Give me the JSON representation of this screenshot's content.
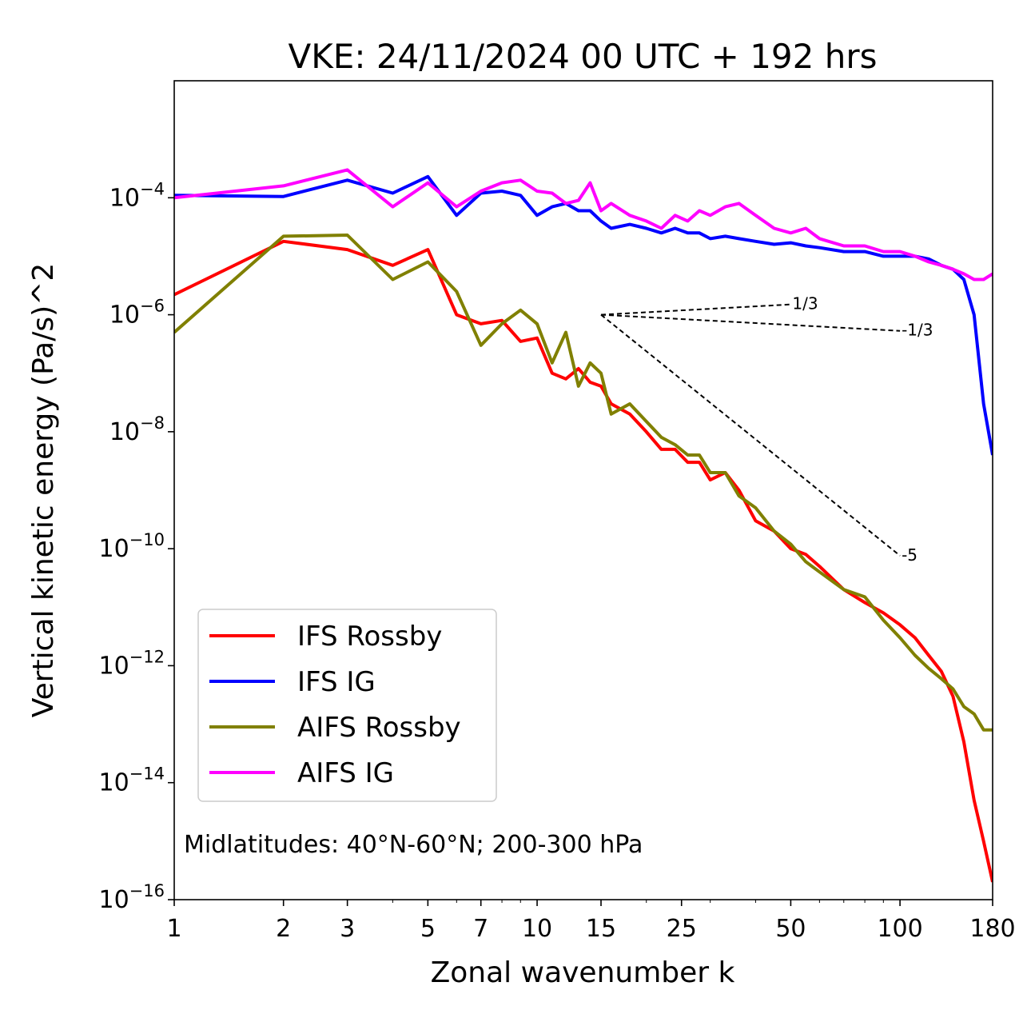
{
  "chart_data": {
    "type": "line",
    "title": "VKE: 24/11/2024 00 UTC + 192 hrs",
    "xlabel": "Zonal wavenumber k",
    "ylabel": "Vertical kinetic energy (Pa/s)^2",
    "x_scale": "log",
    "y_scale": "log",
    "xlim": [
      1,
      180
    ],
    "ylim": [
      1e-16,
      0.01
    ],
    "x_ticks": [
      1,
      2,
      3,
      5,
      7,
      10,
      15,
      25,
      50,
      100,
      180
    ],
    "y_ticks": [
      {
        "value": 0.0001,
        "base": "10",
        "exp": "−4"
      },
      {
        "value": 1e-06,
        "base": "10",
        "exp": "−6"
      },
      {
        "value": 1e-08,
        "base": "10",
        "exp": "−8"
      },
      {
        "value": 1e-10,
        "base": "10",
        "exp": "−10"
      },
      {
        "value": 1e-12,
        "base": "10",
        "exp": "−12"
      },
      {
        "value": 1e-14,
        "base": "10",
        "exp": "−14"
      },
      {
        "value": 1e-16,
        "base": "10",
        "exp": "−16"
      }
    ],
    "annotation": "Midlatitudes: 40°N-60°N; 200-300 hPa",
    "legend_position": "lower-left",
    "series": [
      {
        "name": "IFS Rossby",
        "color": "#ff0000",
        "x": [
          1,
          2,
          3,
          4,
          5,
          6,
          7,
          8,
          9,
          10,
          11,
          12,
          13,
          14,
          15,
          16,
          18,
          20,
          22,
          24,
          26,
          28,
          30,
          33,
          36,
          40,
          45,
          50,
          55,
          60,
          70,
          80,
          90,
          100,
          110,
          120,
          130,
          140,
          150,
          160,
          170,
          180
        ],
        "values": [
          2.2e-06,
          1.8e-05,
          1.3e-05,
          7e-06,
          1.3e-05,
          1e-06,
          7e-07,
          8e-07,
          3.5e-07,
          4e-07,
          1e-07,
          8e-08,
          1.2e-07,
          7e-08,
          6e-08,
          3e-08,
          2e-08,
          1e-08,
          5e-09,
          5e-09,
          3e-09,
          3e-09,
          1.5e-09,
          2e-09,
          1e-09,
          3e-10,
          2e-10,
          1e-10,
          8e-11,
          5e-11,
          2e-11,
          1.2e-11,
          8e-12,
          5e-12,
          3e-12,
          1.5e-12,
          8e-13,
          3e-13,
          5e-14,
          5e-15,
          1e-15,
          2e-16
        ]
      },
      {
        "name": "IFS IG",
        "color": "#0000ff",
        "x": [
          1,
          2,
          3,
          4,
          5,
          6,
          7,
          8,
          9,
          10,
          11,
          12,
          13,
          14,
          15,
          16,
          18,
          20,
          22,
          24,
          26,
          28,
          30,
          33,
          36,
          40,
          45,
          50,
          55,
          60,
          70,
          80,
          90,
          100,
          110,
          120,
          130,
          140,
          150,
          160,
          170,
          180
        ],
        "values": [
          0.00011,
          0.000105,
          0.0002,
          0.00012,
          0.00023,
          5e-05,
          0.00012,
          0.00013,
          0.00011,
          5e-05,
          7e-05,
          8e-05,
          6e-05,
          6e-05,
          4e-05,
          3e-05,
          3.5e-05,
          3e-05,
          2.5e-05,
          3e-05,
          2.5e-05,
          2.5e-05,
          2e-05,
          2.2e-05,
          2e-05,
          1.8e-05,
          1.6e-05,
          1.7e-05,
          1.5e-05,
          1.4e-05,
          1.2e-05,
          1.2e-05,
          1e-05,
          1e-05,
          1e-05,
          9e-06,
          7e-06,
          6e-06,
          4e-06,
          1e-06,
          3e-08,
          4e-09
        ]
      },
      {
        "name": "AIFS Rossby",
        "color": "#808000",
        "x": [
          1,
          2,
          3,
          4,
          5,
          6,
          7,
          8,
          9,
          10,
          11,
          12,
          13,
          14,
          15,
          16,
          18,
          20,
          22,
          24,
          26,
          28,
          30,
          33,
          36,
          40,
          45,
          50,
          55,
          60,
          70,
          80,
          90,
          100,
          110,
          120,
          130,
          140,
          150,
          160,
          170,
          180
        ],
        "values": [
          5e-07,
          2.2e-05,
          2.3e-05,
          4e-06,
          8e-06,
          2.5e-06,
          3e-07,
          7e-07,
          1.2e-06,
          7e-07,
          1.5e-07,
          5e-07,
          6e-08,
          1.5e-07,
          1e-07,
          2e-08,
          3e-08,
          1.5e-08,
          8e-09,
          6e-09,
          4e-09,
          4e-09,
          2e-09,
          2e-09,
          8e-10,
          5e-10,
          2e-10,
          1.2e-10,
          6e-11,
          4e-11,
          2e-11,
          1.5e-11,
          6e-12,
          3e-12,
          1.5e-12,
          9e-13,
          6e-13,
          4e-13,
          2e-13,
          1.5e-13,
          8e-14,
          8e-14
        ]
      },
      {
        "name": "AIFS IG",
        "color": "#ff00ff",
        "x": [
          1,
          2,
          3,
          4,
          5,
          6,
          7,
          8,
          9,
          10,
          11,
          12,
          13,
          14,
          15,
          16,
          18,
          20,
          22,
          24,
          26,
          28,
          30,
          33,
          36,
          40,
          45,
          50,
          55,
          60,
          70,
          80,
          90,
          100,
          110,
          120,
          130,
          140,
          150,
          160,
          170,
          180
        ],
        "values": [
          0.0001,
          0.00016,
          0.0003,
          7e-05,
          0.00018,
          7e-05,
          0.00013,
          0.00018,
          0.0002,
          0.00013,
          0.00012,
          8e-05,
          9e-05,
          0.00018,
          6e-05,
          8e-05,
          5e-05,
          4e-05,
          3e-05,
          5e-05,
          4e-05,
          6e-05,
          5e-05,
          7e-05,
          8e-05,
          5e-05,
          3e-05,
          2.5e-05,
          3e-05,
          2e-05,
          1.5e-05,
          1.5e-05,
          1.2e-05,
          1.2e-05,
          1e-05,
          8e-06,
          7e-06,
          6e-06,
          5e-06,
          4e-06,
          4e-06,
          5e-06
        ]
      }
    ],
    "reference_slopes": [
      {
        "label": "1/3",
        "x_start": 15,
        "x_end": 50,
        "y_start": 1e-06,
        "y_end": 1.5e-06
      },
      {
        "label": "-1/3",
        "x_start": 15,
        "x_end": 100,
        "y_start": 1e-06,
        "y_end": 5.3e-07
      },
      {
        "label": "-5",
        "x_start": 15,
        "x_end": 100,
        "y_start": 1e-06,
        "y_end": 7.6e-11
      }
    ]
  }
}
